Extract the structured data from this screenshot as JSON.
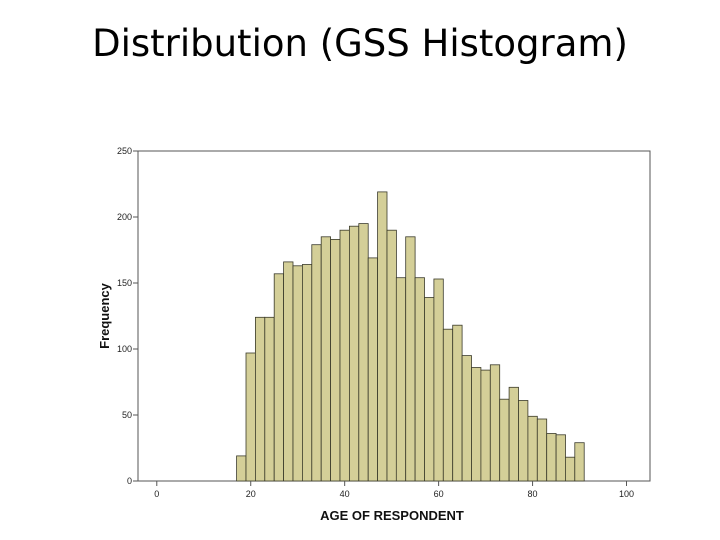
{
  "slide": {
    "title": "Distribution (GSS Histogram)"
  },
  "colors": {
    "bar_fill": "#d4cf98",
    "bar_stroke": "#3a3a2a",
    "plot_border": "#555555"
  },
  "chart_data": {
    "type": "bar",
    "title": "",
    "xlabel": "AGE OF RESPONDENT",
    "ylabel": "Frequency",
    "xlim": [
      -4,
      105
    ],
    "ylim": [
      0,
      250
    ],
    "x_ticks": [
      0,
      20,
      40,
      60,
      80,
      100
    ],
    "y_ticks": [
      0,
      50,
      100,
      150,
      200,
      250
    ],
    "bin_width": 2,
    "bins": [
      {
        "x0": 17,
        "value": 19
      },
      {
        "x0": 19,
        "value": 97
      },
      {
        "x0": 21,
        "value": 124
      },
      {
        "x0": 23,
        "value": 124
      },
      {
        "x0": 25,
        "value": 157
      },
      {
        "x0": 27,
        "value": 166
      },
      {
        "x0": 29,
        "value": 163
      },
      {
        "x0": 31,
        "value": 164
      },
      {
        "x0": 33,
        "value": 179
      },
      {
        "x0": 35,
        "value": 185
      },
      {
        "x0": 37,
        "value": 183
      },
      {
        "x0": 39,
        "value": 190
      },
      {
        "x0": 41,
        "value": 193
      },
      {
        "x0": 43,
        "value": 195
      },
      {
        "x0": 45,
        "value": 169
      },
      {
        "x0": 47,
        "value": 219
      },
      {
        "x0": 49,
        "value": 190
      },
      {
        "x0": 51,
        "value": 154
      },
      {
        "x0": 53,
        "value": 185
      },
      {
        "x0": 55,
        "value": 154
      },
      {
        "x0": 57,
        "value": 139
      },
      {
        "x0": 59,
        "value": 153
      },
      {
        "x0": 61,
        "value": 115
      },
      {
        "x0": 63,
        "value": 118
      },
      {
        "x0": 65,
        "value": 95
      },
      {
        "x0": 67,
        "value": 86
      },
      {
        "x0": 69,
        "value": 84
      },
      {
        "x0": 71,
        "value": 88
      },
      {
        "x0": 73,
        "value": 62
      },
      {
        "x0": 75,
        "value": 71
      },
      {
        "x0": 77,
        "value": 61
      },
      {
        "x0": 79,
        "value": 49
      },
      {
        "x0": 81,
        "value": 47
      },
      {
        "x0": 83,
        "value": 36
      },
      {
        "x0": 85,
        "value": 35
      },
      {
        "x0": 87,
        "value": 18
      },
      {
        "x0": 89,
        "value": 29
      }
    ]
  }
}
